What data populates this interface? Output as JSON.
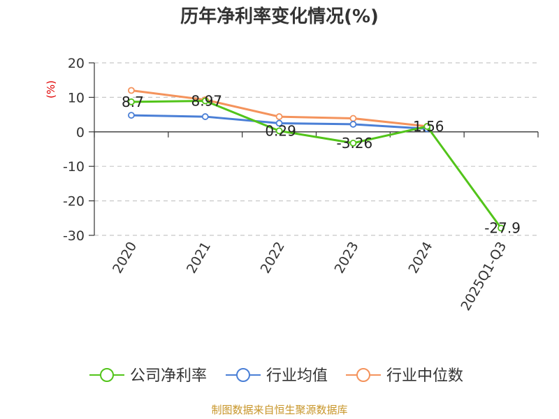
{
  "chart_data": {
    "type": "line",
    "title": "历年净利率变化情况(%)",
    "ylabel": "(%)",
    "categories": [
      "2020",
      "2021",
      "2022",
      "2023",
      "2024",
      "2025Q1-Q3"
    ],
    "ylim": [
      -30,
      20
    ],
    "yticks": [
      20,
      10,
      0,
      -10,
      -20,
      -30
    ],
    "grid": true,
    "legend_position": "bottom",
    "series": [
      {
        "name": "公司净利率",
        "color": "#52c41a",
        "values": [
          8.7,
          8.97,
          0.29,
          -3.26,
          1.56,
          -27.9
        ],
        "labels": [
          "8.7",
          "8.97",
          "0.29",
          "-3.26",
          "1.56",
          "-27.9"
        ]
      },
      {
        "name": "行业均值",
        "color": "#4a7fd6",
        "values": [
          4.8,
          4.4,
          2.5,
          2.2,
          0.9,
          null
        ]
      },
      {
        "name": "行业中位数",
        "color": "#f4935c",
        "values": [
          12.0,
          9.3,
          4.4,
          3.9,
          1.6,
          null
        ]
      }
    ],
    "source": "制图数据来自恒生聚源数据库"
  }
}
